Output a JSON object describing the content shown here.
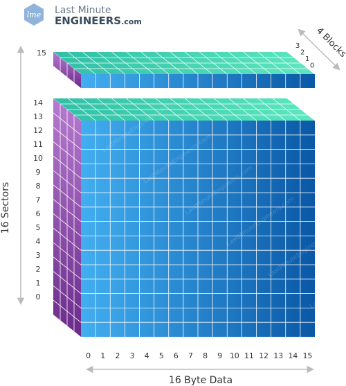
{
  "logo": {
    "icon": "lme-logo-icon",
    "mark_text": "lme",
    "line1": "Last Minute",
    "line2": "ENGINEERS",
    "line2_suffix": ".com"
  },
  "colors": {
    "front_left": "#42aef0",
    "front_right": "#0a58a6",
    "top_left": "#2fbfa6",
    "top_right": "#5de8bf",
    "side_top": "#b67bd0",
    "side_bottom": "#6a2a8a",
    "grid": "#ffffff",
    "arrow": "#bbbbbb",
    "text": "#333333"
  },
  "diagram": {
    "sector_label": "16 Sectors",
    "byte_label": "16 Byte Data",
    "block_label": "4 Blocks",
    "sector_numbers": [
      "15",
      "14",
      "13",
      "12",
      "11",
      "10",
      "9",
      "8",
      "7",
      "6",
      "5",
      "4",
      "3",
      "2",
      "1",
      "0"
    ],
    "byte_numbers": [
      "0",
      "1",
      "2",
      "3",
      "4",
      "5",
      "6",
      "7",
      "8",
      "9",
      "10",
      "11",
      "12",
      "13",
      "14",
      "15"
    ],
    "block_numbers": [
      "3",
      "2",
      "1",
      "0"
    ],
    "sector_count": 16,
    "block_count": 4,
    "byte_count": 16,
    "watermark": "LastMinuteEngineers.com"
  }
}
